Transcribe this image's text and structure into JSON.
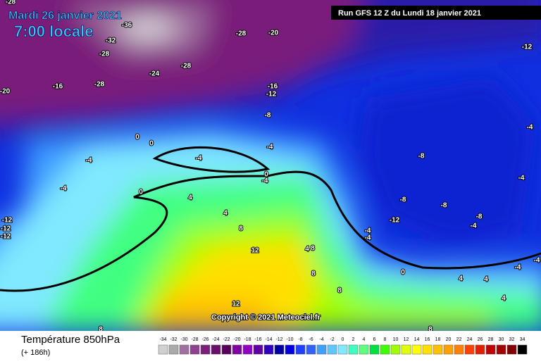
{
  "header": {
    "date": "Mardi 26 janvier 2021",
    "time": "7:00 locale",
    "run": "Run GFS 12 Z du Lundi 18 janvier 2021"
  },
  "copyright": "Copyright © 2021 Meteociel.fr",
  "footer": {
    "title": "Température 850hPa",
    "lead": "(+ 186h)"
  },
  "contour_labels": [
    -28,
    -36,
    -32,
    -28,
    -28,
    -24,
    -28,
    -16,
    -20,
    -28,
    -20,
    -12,
    -16,
    -12,
    -8,
    -4,
    0,
    0,
    -4,
    -4,
    -4,
    -8,
    0,
    -4,
    -4,
    0,
    4,
    -4,
    -8,
    -8,
    -12,
    -12,
    -12,
    4,
    8,
    -12,
    -8,
    -4,
    -4,
    -4,
    12,
    4,
    8,
    -4,
    -4,
    0,
    8,
    4,
    4,
    8,
    4,
    12,
    8,
    8
  ],
  "colorbar": {
    "ticks": [
      -34,
      -32,
      -30,
      -28,
      -26,
      -24,
      -22,
      -20,
      -18,
      -16,
      -14,
      -12,
      -10,
      -8,
      -6,
      -4,
      -2,
      0,
      2,
      4,
      6,
      8,
      10,
      12,
      14,
      16,
      18,
      20,
      22,
      24,
      26,
      28,
      30,
      32,
      34
    ],
    "colors": [
      "#d0d0d0",
      "#aaaaaa",
      "#a070a0",
      "#904090",
      "#7a1f7a",
      "#6a0f6a",
      "#5a005a",
      "#8000a0",
      "#9000c0",
      "#6000a0",
      "#3000c0",
      "#0000a0",
      "#0000e0",
      "#2040ff",
      "#3060ff",
      "#40a0ff",
      "#60c8ff",
      "#80e8ff",
      "#40ffc0",
      "#60ff80",
      "#00e040",
      "#40ff00",
      "#a0ff00",
      "#e0ff00",
      "#ffff00",
      "#ffe000",
      "#ffc000",
      "#ffa000",
      "#ff8000",
      "#ff4000",
      "#e02000",
      "#c00000",
      "#a00000",
      "#800000",
      "#000000"
    ]
  }
}
